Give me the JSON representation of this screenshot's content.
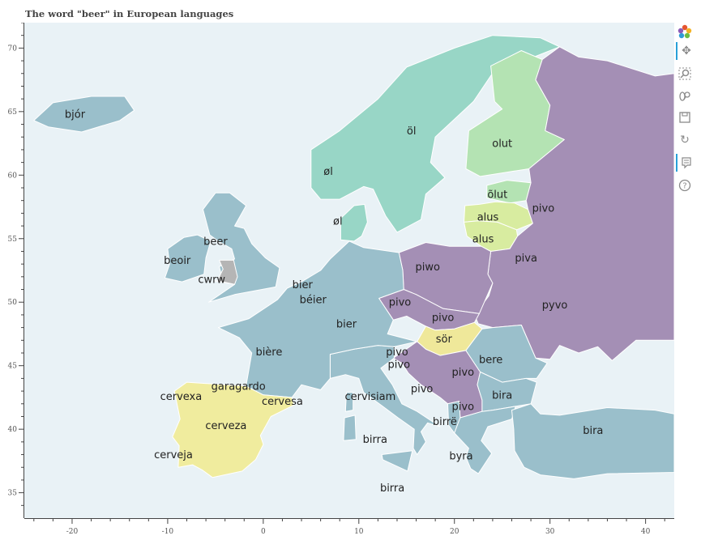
{
  "title": "The word \"beer\" in European languages",
  "colors": {
    "ocean": "#e9f2f6",
    "germanic": "#9abfcb",
    "nordic": "#98d6c6",
    "finnic": "#b4e3b3",
    "baltic": "#d8eca0",
    "slavic": "#a48fb5",
    "hungarian": "#efe89a",
    "romance": "#f0ec9e",
    "welsh": "#b5b5b5",
    "border": "#ffffff"
  },
  "chart_data": {
    "type": "map",
    "xlim": [
      -25,
      43
    ],
    "ylim": [
      33,
      72
    ],
    "x_ticks": [
      -20,
      -10,
      0,
      10,
      20,
      30,
      40
    ],
    "y_ticks": [
      35,
      40,
      45,
      50,
      55,
      60,
      65,
      70
    ],
    "labels": [
      {
        "text": "bjór",
        "lon": -19.7,
        "lat": 64.8
      },
      {
        "text": "öl",
        "lon": 15.5,
        "lat": 63.5
      },
      {
        "text": "øl",
        "lon": 6.8,
        "lat": 60.3
      },
      {
        "text": "øl",
        "lon": 7.8,
        "lat": 56.4
      },
      {
        "text": "olut",
        "lon": 25.0,
        "lat": 62.5
      },
      {
        "text": "õlut",
        "lon": 24.5,
        "lat": 58.5
      },
      {
        "text": "pivo",
        "lon": 29.3,
        "lat": 57.4
      },
      {
        "text": "alus",
        "lon": 23.5,
        "lat": 56.7
      },
      {
        "text": "alus",
        "lon": 23.0,
        "lat": 55.0
      },
      {
        "text": "piva",
        "lon": 27.5,
        "lat": 53.5
      },
      {
        "text": "beer",
        "lon": -5.0,
        "lat": 54.8
      },
      {
        "text": "beoir",
        "lon": -9.0,
        "lat": 53.3
      },
      {
        "text": "cwrw",
        "lon": -5.4,
        "lat": 51.8
      },
      {
        "text": "bier",
        "lon": 4.1,
        "lat": 51.4
      },
      {
        "text": "béier",
        "lon": 5.2,
        "lat": 50.2
      },
      {
        "text": "piwo",
        "lon": 17.2,
        "lat": 52.8
      },
      {
        "text": "pivo",
        "lon": 14.3,
        "lat": 50.0
      },
      {
        "text": "pivo",
        "lon": 18.8,
        "lat": 48.8
      },
      {
        "text": "pyvo",
        "lon": 30.5,
        "lat": 49.8
      },
      {
        "text": "bier",
        "lon": 8.7,
        "lat": 48.3
      },
      {
        "text": "sör",
        "lon": 18.9,
        "lat": 47.1
      },
      {
        "text": "bière",
        "lon": 0.6,
        "lat": 46.1
      },
      {
        "text": "pivo",
        "lon": 14.0,
        "lat": 46.1
      },
      {
        "text": "pivo",
        "lon": 14.2,
        "lat": 45.1
      },
      {
        "text": "bere",
        "lon": 23.8,
        "lat": 45.5
      },
      {
        "text": "pivo",
        "lon": 20.9,
        "lat": 44.5
      },
      {
        "text": "garagardo",
        "lon": -2.6,
        "lat": 43.4
      },
      {
        "text": "cervexa",
        "lon": -8.6,
        "lat": 42.6
      },
      {
        "text": "cervesa",
        "lon": 2.0,
        "lat": 42.2
      },
      {
        "text": "cervisiam",
        "lon": 11.2,
        "lat": 42.6
      },
      {
        "text": "pivo",
        "lon": 16.6,
        "lat": 43.2
      },
      {
        "text": "bira",
        "lon": 25.0,
        "lat": 42.7
      },
      {
        "text": "pivo",
        "lon": 20.9,
        "lat": 41.8
      },
      {
        "text": "birrë",
        "lon": 19.0,
        "lat": 40.6
      },
      {
        "text": "cerveza",
        "lon": -3.9,
        "lat": 40.3
      },
      {
        "text": "bira",
        "lon": 34.5,
        "lat": 39.9
      },
      {
        "text": "birra",
        "lon": 11.7,
        "lat": 39.2
      },
      {
        "text": "cerveja",
        "lon": -9.4,
        "lat": 38.0
      },
      {
        "text": "byra",
        "lon": 20.7,
        "lat": 37.9
      },
      {
        "text": "birra",
        "lon": 13.5,
        "lat": 35.4
      }
    ]
  },
  "toolbar": {
    "icons": [
      "bokeh-logo-icon",
      "pan-icon",
      "box-zoom-icon",
      "wheel-zoom-icon",
      "save-icon",
      "reset-icon",
      "hover-icon",
      "help-icon"
    ]
  }
}
